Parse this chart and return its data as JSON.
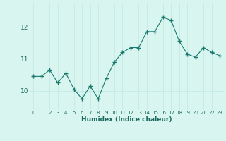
{
  "x": [
    0,
    1,
    2,
    3,
    4,
    5,
    6,
    7,
    8,
    9,
    10,
    11,
    12,
    13,
    14,
    15,
    16,
    17,
    18,
    19,
    20,
    21,
    22,
    23
  ],
  "y": [
    10.45,
    10.45,
    10.65,
    10.25,
    10.55,
    10.05,
    9.75,
    10.15,
    9.75,
    10.4,
    10.9,
    11.2,
    11.35,
    11.35,
    11.85,
    11.85,
    12.3,
    12.2,
    11.55,
    11.15,
    11.05,
    11.35,
    11.2,
    11.1
  ],
  "xlabel": "Humidex (Indice chaleur)",
  "yticks": [
    10,
    11,
    12
  ],
  "xtick_labels": [
    "0",
    "1",
    "2",
    "3",
    "4",
    "5",
    "6",
    "7",
    "8",
    "9",
    "10",
    "11",
    "12",
    "13",
    "14",
    "15",
    "16",
    "17",
    "18",
    "19",
    "20",
    "21",
    "22",
    "23"
  ],
  "line_color": "#1a7a6e",
  "marker_color": "#1a7a6e",
  "bg_color": "#d8f5f0",
  "grid_color": "#c0e8e2",
  "ylim": [
    9.4,
    12.75
  ],
  "xlim": [
    -0.5,
    23.5
  ]
}
